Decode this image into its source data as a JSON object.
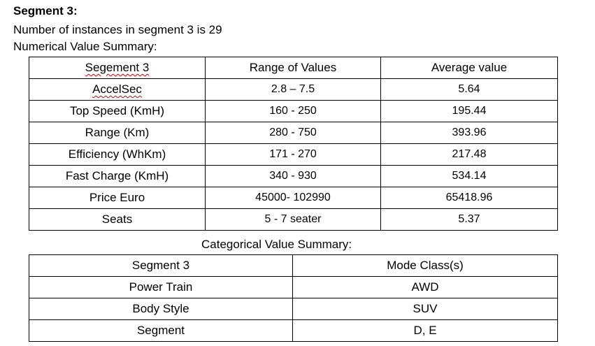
{
  "heading": "Segment 3:",
  "instances_text": "Number of instances in segment 3 is 29",
  "numerical_summary_label": "Numerical Value Summary:",
  "numerical_table": {
    "headers": [
      "Segement 3",
      "Range of Values",
      "Average value"
    ],
    "rows": [
      {
        "name": "AccelSec",
        "range": "2.8 – 7.5",
        "average": "5.64"
      },
      {
        "name": "Top Speed (KmH)",
        "range": "160 - 250",
        "average": "195.44"
      },
      {
        "name": "Range (Km)",
        "range": "280 - 750",
        "average": "393.96"
      },
      {
        "name": "Efficiency (WhKm)",
        "range": "171 - 270",
        "average": "217.48"
      },
      {
        "name": "Fast Charge (KmH)",
        "range": "340 - 930",
        "average": "534.14"
      },
      {
        "name": "Price Euro",
        "range": "45000- 102990",
        "average": "65418.96"
      },
      {
        "name": "Seats",
        "range": "5 - 7 seater",
        "average": "5.37"
      }
    ]
  },
  "categorical_summary_label": "Categorical Value Summary:",
  "categorical_table": {
    "headers": [
      "Segment 3",
      "Mode Class(s)"
    ],
    "rows": [
      {
        "name": "Power Train",
        "mode": "AWD"
      },
      {
        "name": "Body Style",
        "mode": "SUV"
      },
      {
        "name": "Segment",
        "mode": "D, E"
      }
    ]
  }
}
